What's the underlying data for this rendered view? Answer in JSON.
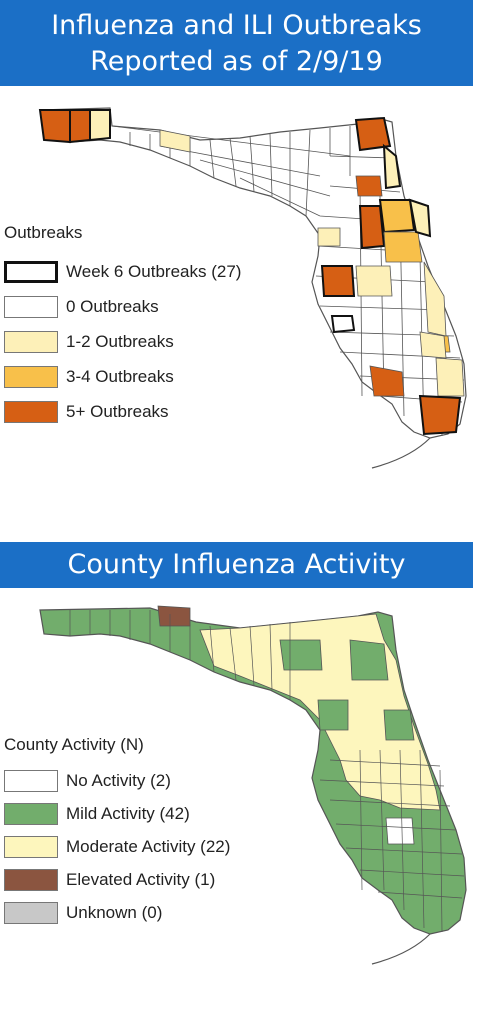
{
  "outbreaks_panel": {
    "title_line1": "Influenza and ILI Outbreaks",
    "title_line2": "Reported as of 2/9/19",
    "legend_title": "Outbreaks",
    "legend": [
      {
        "label": "Week 6 Outbreaks (27)",
        "color": "#ffffff",
        "outline": "#111111"
      },
      {
        "label": "0 Outbreaks",
        "color": "#ffffff",
        "outline": "#777777"
      },
      {
        "label": "1-2 Outbreaks",
        "color": "#fdf0b8",
        "outline": "#777777"
      },
      {
        "label": "3-4 Outbreaks",
        "color": "#f8c04a",
        "outline": "#777777"
      },
      {
        "label": "5+ Outbreaks",
        "color": "#d65f14",
        "outline": "#777777"
      }
    ]
  },
  "activity_panel": {
    "title": "County Influenza Activity",
    "legend_title": "County Activity (N)",
    "legend": [
      {
        "label": "No Activity (2)",
        "color": "#ffffff"
      },
      {
        "label": "Mild Activity (42)",
        "color": "#72ad6c"
      },
      {
        "label": "Moderate Activity (22)",
        "color": "#fdf6bd"
      },
      {
        "label": "Elevated Activity (1)",
        "color": "#8b5540"
      },
      {
        "label": "Unknown (0)",
        "color": "#c8c8c8"
      }
    ]
  },
  "colors": {
    "banner": "#1b6fc6",
    "county_border": "#555555",
    "ocean": "#ffffff"
  }
}
